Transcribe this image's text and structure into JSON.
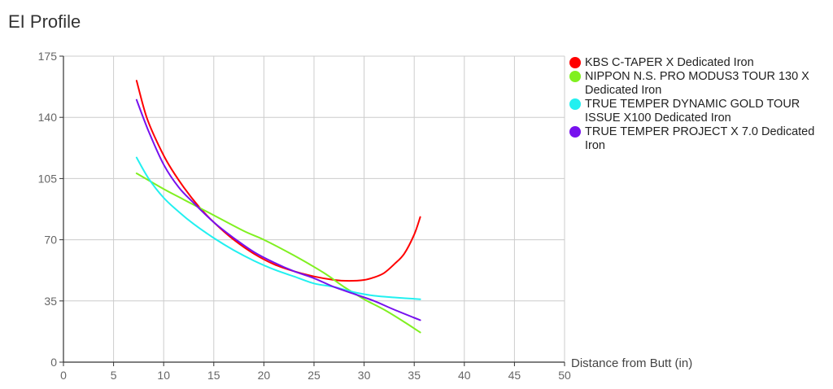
{
  "chart_data": {
    "type": "line",
    "title": "EI Profile",
    "xlabel": "Distance from Butt (in)",
    "ylabel": "",
    "xlim": [
      0,
      50
    ],
    "ylim": [
      0,
      175
    ],
    "xticks": [
      "0",
      "5",
      "10",
      "15",
      "20",
      "25",
      "30",
      "35",
      "40",
      "45",
      "50"
    ],
    "yticks": [
      "0",
      "35",
      "70",
      "105",
      "140",
      "175"
    ],
    "grid": true,
    "legend": "right",
    "series": [
      {
        "name": "KBS C-TAPER X Dedicated Iron",
        "color": "#ff0000",
        "x": [
          7.3,
          8.3,
          9.5,
          10.5,
          12,
          13.5,
          15,
          17,
          19,
          21,
          23,
          25,
          27,
          28.5,
          30,
          31,
          32,
          33,
          34,
          35,
          35.6
        ],
        "y": [
          161,
          140,
          124,
          113,
          100,
          89,
          80,
          70,
          62,
          56,
          52,
          49,
          47,
          46.5,
          47,
          48.5,
          51,
          56,
          62,
          73,
          83
        ]
      },
      {
        "name": "NIPPON N.S. PRO MODUS3 TOUR 130 X Dedicated Iron",
        "color": "#80f020",
        "x": [
          7.3,
          10,
          12,
          15,
          18,
          20,
          23,
          26,
          28,
          30,
          32,
          34,
          35.6
        ],
        "y": [
          108,
          99,
          93,
          84,
          75,
          70,
          61,
          51,
          43,
          36,
          30,
          23,
          17
        ]
      },
      {
        "name": "TRUE TEMPER DYNAMIC GOLD TOUR ISSUE X100 Dedicated Iron",
        "color": "#22f0f0",
        "x": [
          7.3,
          8.5,
          10,
          11.5,
          13,
          15,
          17,
          19,
          21,
          23,
          25,
          27,
          29,
          31,
          33,
          35.6
        ],
        "y": [
          117,
          105,
          94,
          86,
          79,
          71,
          64,
          58,
          53,
          49,
          45,
          43,
          40,
          38,
          37,
          36
        ]
      },
      {
        "name": "TRUE TEMPER PROJECT X 7.0 Dedicated Iron",
        "color": "#7711ee",
        "x": [
          7.3,
          8.5,
          10,
          11.5,
          13,
          15,
          17,
          19,
          21,
          23,
          25,
          27,
          29,
          31,
          33,
          35.6
        ],
        "y": [
          150,
          132,
          113,
          100,
          91,
          80,
          71,
          63,
          57,
          52,
          48,
          43,
          39,
          35,
          30,
          24
        ]
      }
    ]
  }
}
